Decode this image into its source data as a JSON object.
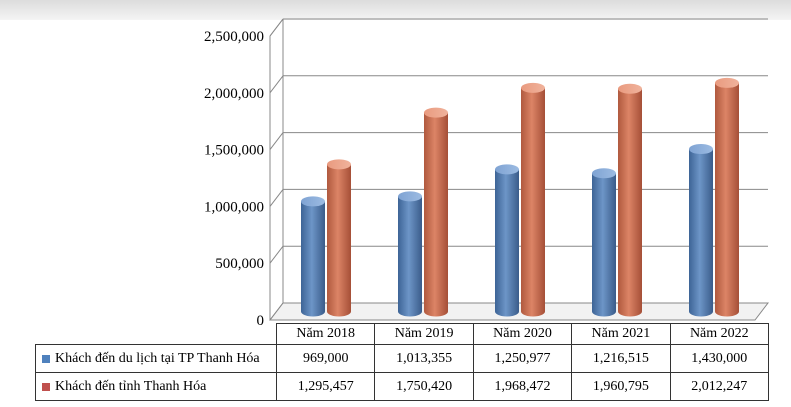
{
  "chart_data": {
    "type": "bar",
    "categories": [
      "Năm 2018",
      "Năm 2019",
      "Năm 2020",
      "Năm 2021",
      "Năm 2022"
    ],
    "series": [
      {
        "name": "Khách đến du lịch tại TP Thanh Hóa",
        "color": "#4f81bd",
        "values": [
          969000,
          1013355,
          1250977,
          1216515,
          1430000
        ],
        "value_labels": [
          "969,000",
          "1,013,355",
          "1,250,977",
          "1,216,515",
          "1,430,000"
        ]
      },
      {
        "name": "Khách đến tỉnh Thanh Hóa",
        "color": "#c0504d",
        "values": [
          1295457,
          1750420,
          1968472,
          1960795,
          2012247
        ],
        "value_labels": [
          "1,295,457",
          "1,750,420",
          "1,968,472",
          "1,960,795",
          "2,012,247"
        ]
      }
    ],
    "yticks": [
      0,
      500000,
      1000000,
      1500000,
      2000000,
      2500000
    ],
    "ytick_labels": [
      "0",
      "500,000",
      "1,000,000",
      "1,500,000",
      "2,000,000",
      "2,500,000"
    ],
    "ylim": [
      0,
      2500000
    ],
    "grid": true,
    "legend": "data table below chart"
  }
}
